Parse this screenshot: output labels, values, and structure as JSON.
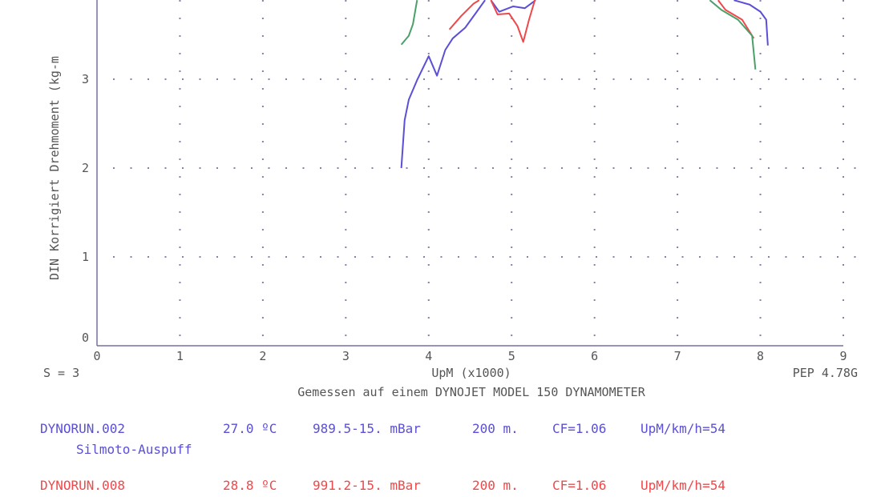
{
  "chart_data": {
    "type": "line",
    "ylabel": "DIN Korrigiert Drehmoment (kg-m",
    "xlabel": "UpM (x1000)",
    "xlim": [
      0,
      9
    ],
    "ylim": [
      0,
      3.89
    ],
    "x_ticks": [
      "0",
      "1",
      "2",
      "3",
      "4",
      "5",
      "6",
      "7",
      "8",
      "9"
    ],
    "y_ticks": [
      "0",
      "1",
      "2",
      "3"
    ],
    "grid": "dotted",
    "series": [
      {
        "color": "#5a4fd6",
        "segments": [
          [
            [
              3.67,
              2.0
            ],
            [
              3.71,
              2.54
            ],
            [
              3.76,
              2.77
            ],
            [
              3.86,
              2.99
            ],
            [
              4.0,
              3.26
            ],
            [
              4.1,
              3.04
            ],
            [
              4.2,
              3.33
            ],
            [
              4.29,
              3.46
            ],
            [
              4.44,
              3.58
            ],
            [
              4.58,
              3.76
            ],
            [
              4.68,
              3.89
            ]
          ],
          [
            [
              4.75,
              3.89
            ],
            [
              4.85,
              3.76
            ],
            [
              5.02,
              3.82
            ],
            [
              5.16,
              3.8
            ],
            [
              5.29,
              3.89
            ]
          ],
          [
            [
              7.68,
              3.89
            ],
            [
              7.87,
              3.84
            ],
            [
              8.0,
              3.76
            ],
            [
              8.07,
              3.67
            ],
            [
              8.09,
              3.38
            ]
          ]
        ]
      },
      {
        "color": "#f0484a",
        "segments": [
          [
            [
              4.25,
              3.56
            ],
            [
              4.39,
              3.71
            ],
            [
              4.54,
              3.85
            ],
            [
              4.61,
              3.89
            ]
          ],
          [
            [
              4.75,
              3.89
            ],
            [
              4.83,
              3.73
            ],
            [
              4.97,
              3.74
            ],
            [
              5.07,
              3.6
            ],
            [
              5.14,
              3.42
            ],
            [
              5.21,
              3.67
            ],
            [
              5.28,
              3.89
            ]
          ],
          [
            [
              7.49,
              3.89
            ],
            [
              7.58,
              3.78
            ],
            [
              7.78,
              3.67
            ],
            [
              7.92,
              3.46
            ]
          ]
        ]
      },
      {
        "color": "#4aa06a",
        "segments": [
          [
            [
              3.67,
              3.39
            ],
            [
              3.76,
              3.49
            ],
            [
              3.81,
              3.62
            ],
            [
              3.86,
              3.89
            ]
          ],
          [
            [
              7.39,
              3.89
            ],
            [
              7.53,
              3.78
            ],
            [
              7.73,
              3.67
            ],
            [
              7.9,
              3.49
            ],
            [
              7.94,
              3.11
            ]
          ]
        ]
      }
    ]
  },
  "footer": {
    "smoothing": "S = 3",
    "version": "PEP 4.78G",
    "measured": "Gemessen auf einem DYNOJET MODEL 150 DYNAMOMETER"
  },
  "runs": [
    {
      "file": "DYNORUN.002",
      "temp": "27.0 ºC",
      "pressure": "989.5-15. mBar",
      "alt": "200 m.",
      "cf": "CF=1.06",
      "ratio": "UpM/km/h=54",
      "note": "Silmoto-Auspuff",
      "color": "#5a4fd6"
    },
    {
      "file": "DYNORUN.008",
      "temp": "28.8 ºC",
      "pressure": "991.2-15. mBar",
      "alt": "200 m.",
      "cf": "CF=1.06",
      "ratio": "UpM/km/h=54",
      "color": "#f0484a"
    }
  ]
}
